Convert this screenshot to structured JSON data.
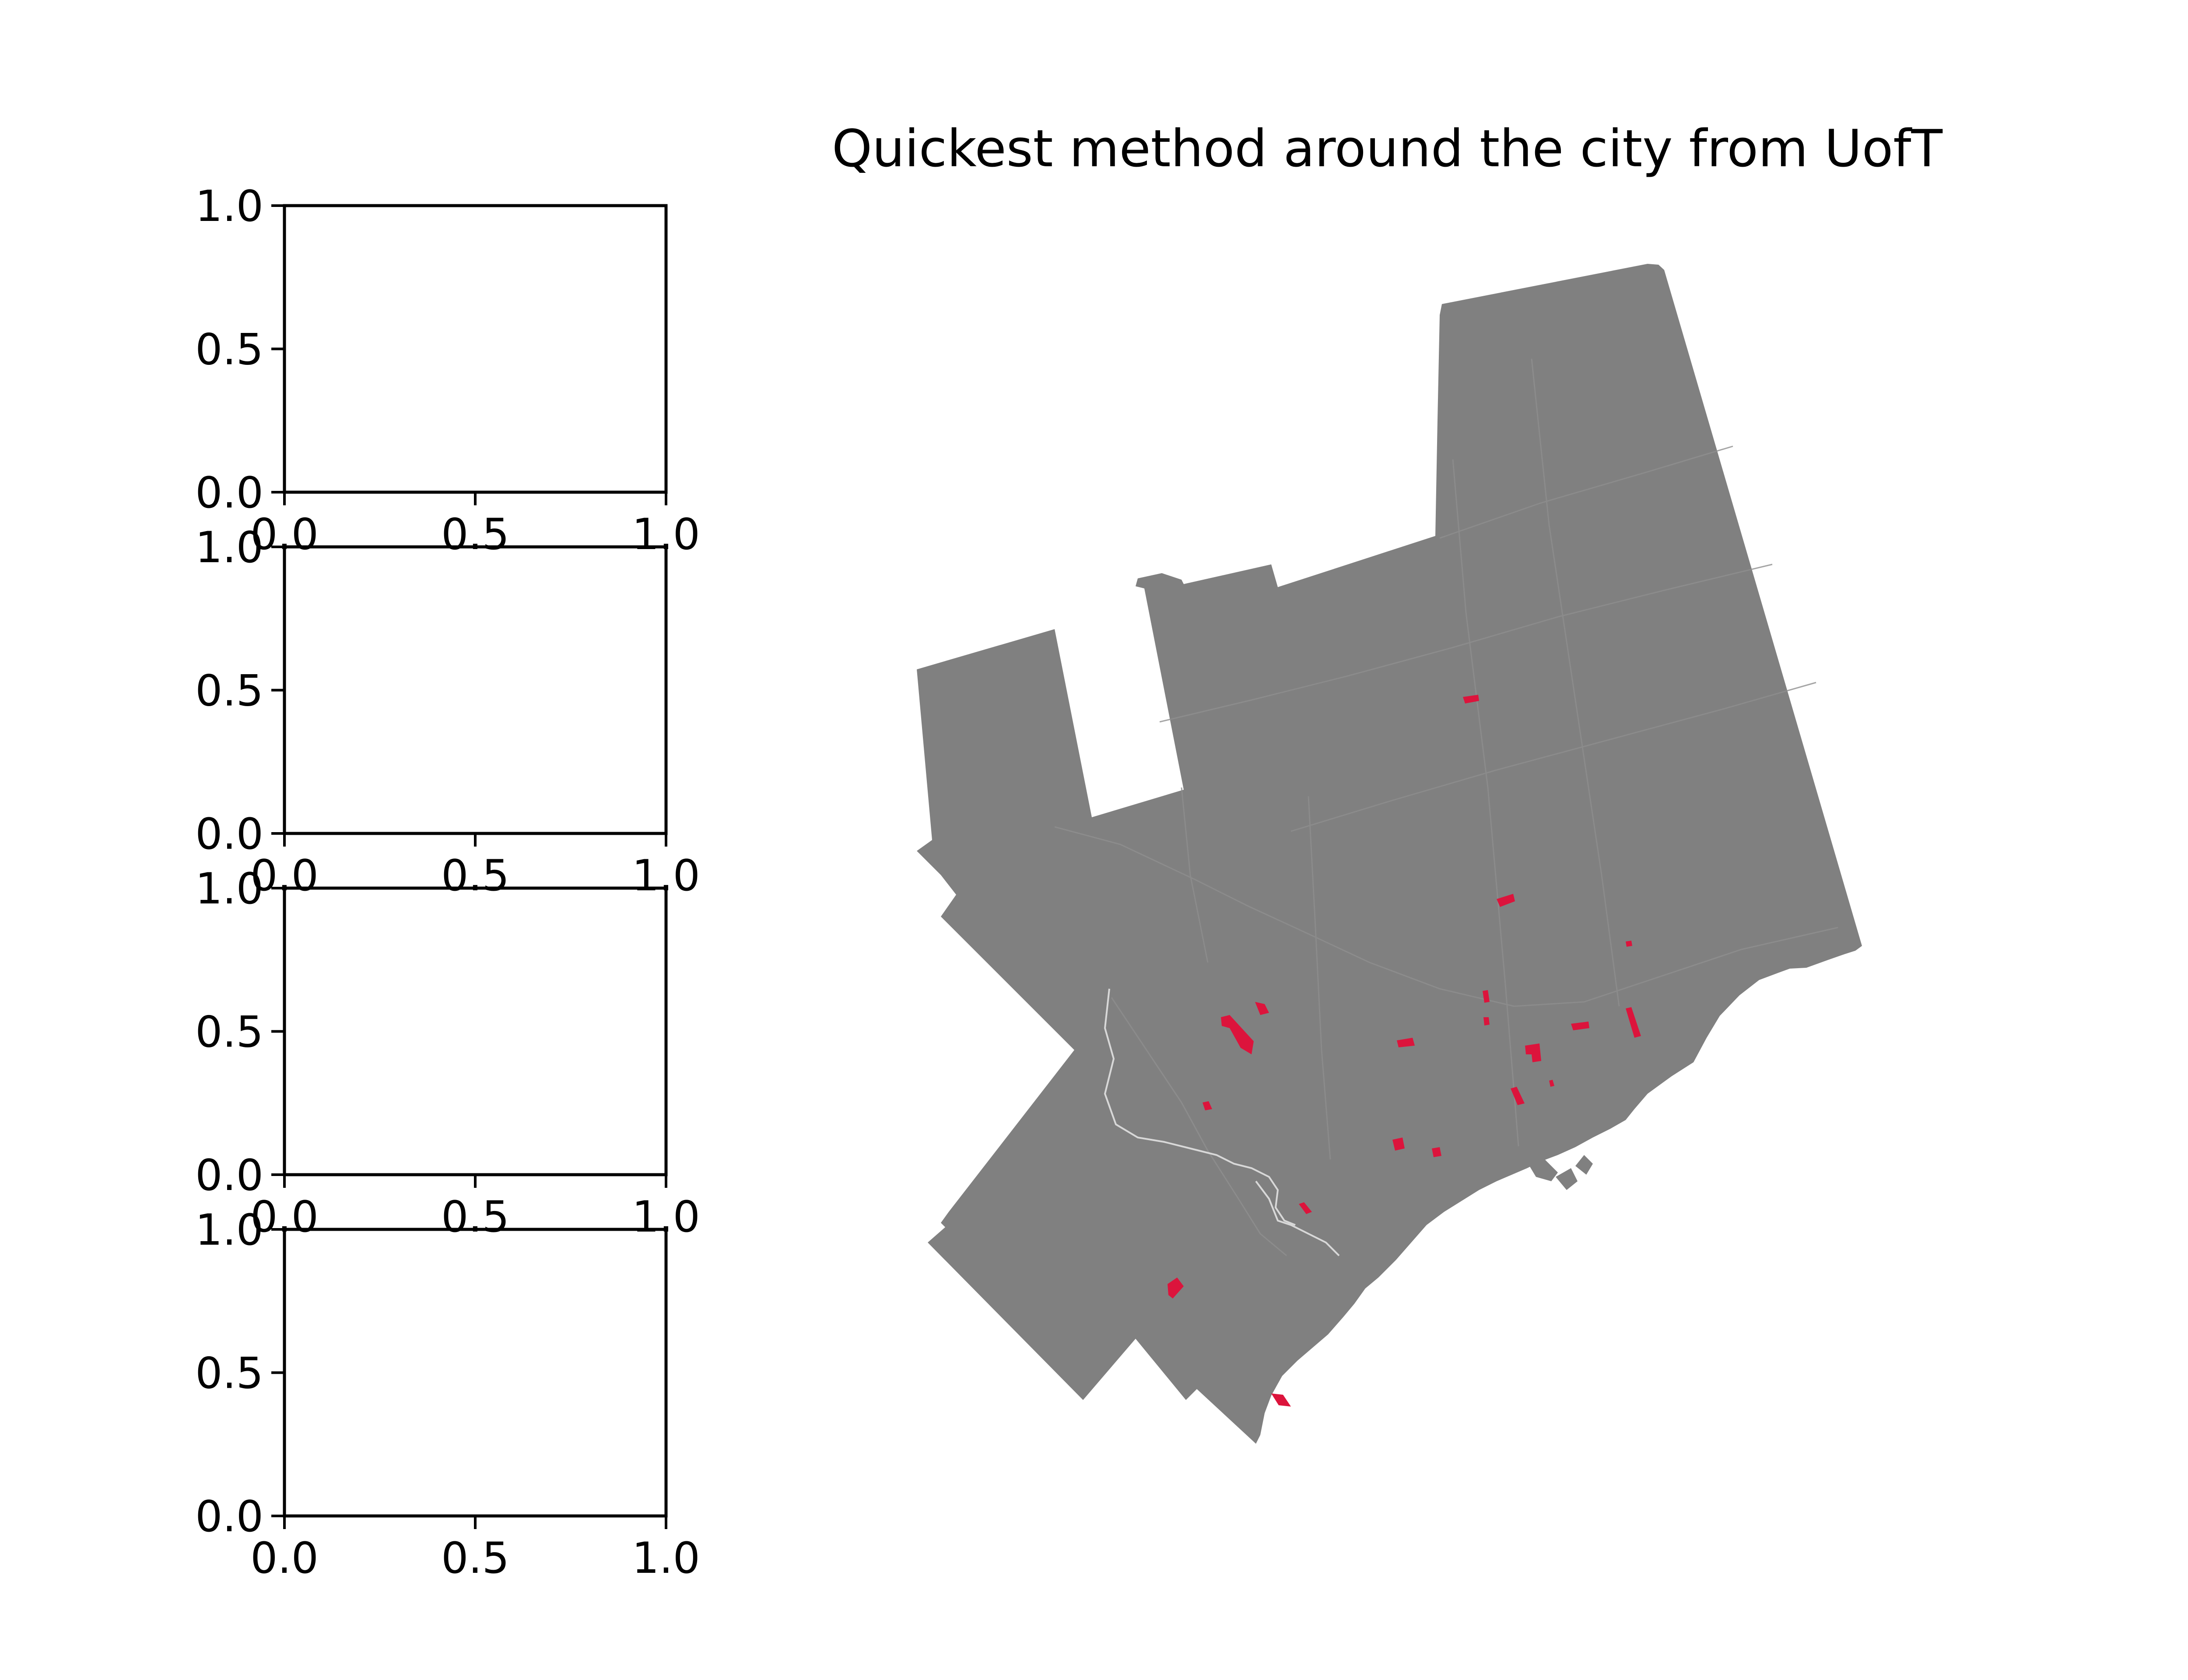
{
  "chart_data": [
    {
      "type": "line",
      "subplot": 1,
      "xlim": [
        0.0,
        1.0
      ],
      "ylim": [
        0.0,
        1.0
      ],
      "xticks": [
        "0.0",
        "0.5",
        "1.0"
      ],
      "yticks": [
        "0.0",
        "0.5",
        "1.0"
      ],
      "series": []
    },
    {
      "type": "line",
      "subplot": 2,
      "xlim": [
        0.0,
        1.0
      ],
      "ylim": [
        0.0,
        1.0
      ],
      "xticks": [
        "0.0",
        "0.5",
        "1.0"
      ],
      "yticks": [
        "0.0",
        "0.5",
        "1.0"
      ],
      "series": []
    },
    {
      "type": "line",
      "subplot": 3,
      "xlim": [
        0.0,
        1.0
      ],
      "ylim": [
        0.0,
        1.0
      ],
      "xticks": [
        "0.0",
        "0.5",
        "1.0"
      ],
      "yticks": [
        "0.0",
        "0.5",
        "1.0"
      ],
      "series": []
    },
    {
      "type": "line",
      "subplot": 4,
      "xlim": [
        0.0,
        1.0
      ],
      "ylim": [
        0.0,
        1.0
      ],
      "xticks": [
        "0.0",
        "0.5",
        "1.0"
      ],
      "yticks": [
        "0.0",
        "0.5",
        "1.0"
      ],
      "series": []
    },
    {
      "type": "map",
      "title": "Quickest method around the city from UofT",
      "base_color": "#808080",
      "highlight_color": "#dc143c",
      "axis_visible": false
    }
  ]
}
